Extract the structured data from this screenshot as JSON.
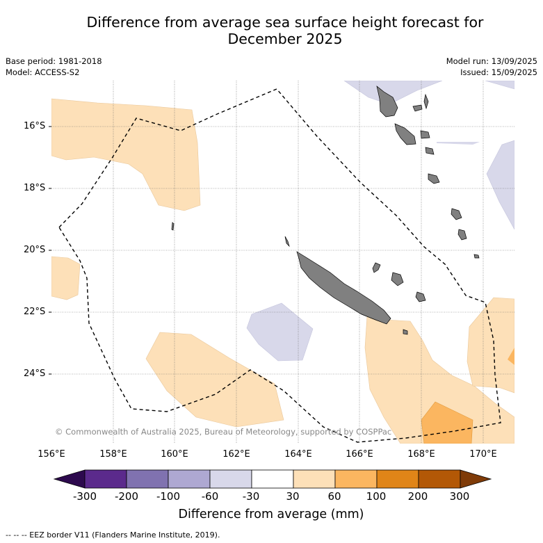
{
  "title_line1": "Difference from average sea surface height forecast for",
  "title_line2": "December 2025",
  "meta": {
    "base_period": "Base period: 1981-2018",
    "model": "Model: ACCESS-S2",
    "model_run": "Model run: 13/09/2025",
    "issued": "Issued: 15/09/2025"
  },
  "lat_labels": [
    "16°S",
    "18°S",
    "20°S",
    "22°S",
    "24°S"
  ],
  "lon_labels": [
    "156°E",
    "158°E",
    "160°E",
    "162°E",
    "164°E",
    "166°E",
    "168°E",
    "170°E"
  ],
  "copyright": "© Commonwealth of Australia 2025, Bureau of Meteorology, supported by COSPPac",
  "colorbar": {
    "labels": [
      "-300",
      "-200",
      "-100",
      "-60",
      "-30",
      "30",
      "60",
      "100",
      "200",
      "300"
    ],
    "colors": [
      "#2d0a4e",
      "#5b2a8c",
      "#8072b0",
      "#aea8d2",
      "#d8d8ea",
      "#ffffff",
      "#fde0b8",
      "#fbb660",
      "#e08518",
      "#b35806",
      "#7f3b08"
    ],
    "title": "Difference from average (mm)"
  },
  "footer": "-- -- -- EEZ border V11 (Flanders Marine Institute, 2019).",
  "colors": {
    "land": "#808080",
    "positive_30_60": "#fde0b8",
    "positive_60_100": "#fbb660",
    "negative_30_60": "#d8d8ea"
  }
}
